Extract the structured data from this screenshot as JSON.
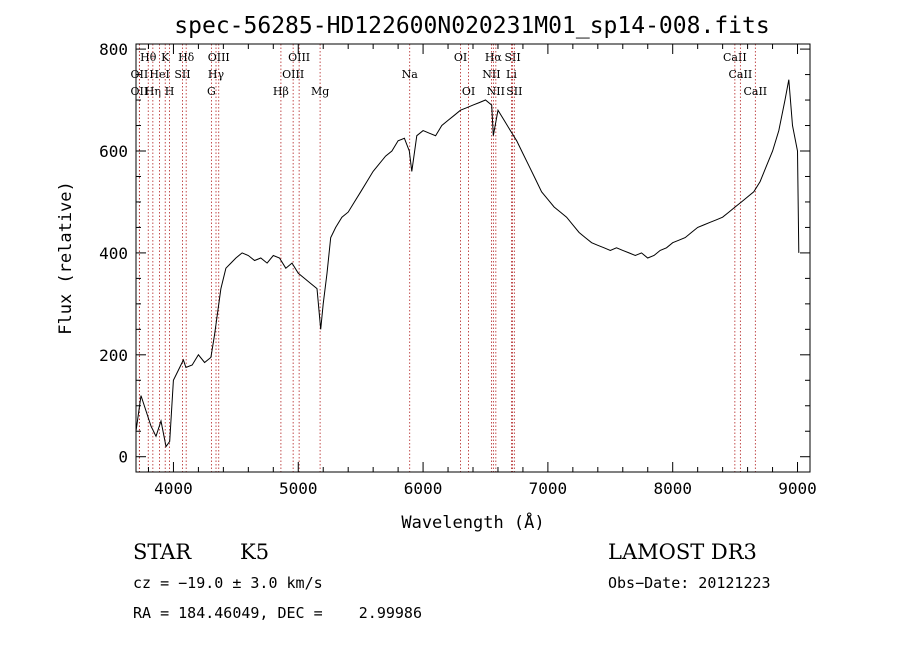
{
  "chart_data": {
    "type": "line",
    "title": "spec-56285-HD122600N020231M01_sp14-008.fits",
    "xlabel": "Wavelength (Å)",
    "ylabel": "Flux (relative)",
    "xlim": [
      3700,
      9100
    ],
    "ylim": [
      -30,
      810
    ],
    "x_ticks": [
      4000,
      5000,
      6000,
      7000,
      8000,
      9000
    ],
    "y_ticks": [
      0,
      200,
      400,
      600,
      800
    ],
    "grid": false,
    "legend": "none",
    "line_color": "#000000",
    "marker_color": "#b22222",
    "series": [
      {
        "x": [
          3700,
          3740,
          3780,
          3820,
          3860,
          3900,
          3940,
          3970,
          4000,
          4040,
          4080,
          4100,
          4150,
          4200,
          4250,
          4300,
          4330,
          4380,
          4420,
          4460,
          4500,
          4550,
          4600,
          4650,
          4700,
          4750,
          4800,
          4850,
          4900,
          4950,
          5000,
          5050,
          5100,
          5150,
          5180,
          5200,
          5230,
          5260,
          5300,
          5350,
          5400,
          5450,
          5500,
          5550,
          5600,
          5650,
          5700,
          5750,
          5800,
          5850,
          5890,
          5910,
          5950,
          6000,
          6050,
          6100,
          6150,
          6200,
          6250,
          6300,
          6350,
          6400,
          6450,
          6500,
          6550,
          6563,
          6600,
          6650,
          6700,
          6750,
          6800,
          6850,
          6900,
          6950,
          7000,
          7050,
          7100,
          7150,
          7200,
          7250,
          7300,
          7350,
          7400,
          7450,
          7500,
          7550,
          7600,
          7650,
          7700,
          7750,
          7800,
          7850,
          7900,
          7950,
          8000,
          8050,
          8100,
          8150,
          8200,
          8250,
          8300,
          8350,
          8400,
          8450,
          8500,
          8550,
          8600,
          8650,
          8700,
          8750,
          8800,
          8850,
          8900,
          8930,
          8960,
          9000,
          9010
        ],
        "y": [
          50,
          120,
          90,
          60,
          40,
          70,
          20,
          30,
          150,
          170,
          190,
          175,
          180,
          200,
          185,
          195,
          240,
          330,
          370,
          380,
          390,
          400,
          395,
          385,
          390,
          380,
          395,
          390,
          370,
          380,
          360,
          350,
          340,
          330,
          250,
          300,
          360,
          430,
          450,
          470,
          480,
          500,
          520,
          540,
          560,
          575,
          590,
          600,
          620,
          625,
          600,
          560,
          630,
          640,
          635,
          630,
          650,
          660,
          670,
          680,
          685,
          690,
          695,
          700,
          690,
          630,
          680,
          660,
          640,
          620,
          595,
          570,
          545,
          520,
          505,
          490,
          480,
          470,
          455,
          440,
          430,
          420,
          415,
          410,
          405,
          410,
          405,
          400,
          395,
          400,
          390,
          395,
          405,
          410,
          420,
          425,
          430,
          440,
          450,
          455,
          460,
          465,
          470,
          480,
          490,
          500,
          510,
          520,
          540,
          570,
          600,
          640,
          700,
          740,
          650,
          600,
          400
        ]
      }
    ],
    "line_markers": [
      {
        "label": "Hθ",
        "x": 3798,
        "row": 1
      },
      {
        "label": "OII",
        "x": 3727,
        "row": 2
      },
      {
        "label": "OII",
        "x": 3727,
        "row": 3
      },
      {
        "label": "Hη",
        "x": 3835,
        "row": 3
      },
      {
        "label": "HeI",
        "x": 3889,
        "row": 2
      },
      {
        "label": "K",
        "x": 3934,
        "row": 1
      },
      {
        "label": "H",
        "x": 3969,
        "row": 3
      },
      {
        "label": "SII",
        "x": 4072,
        "row": 2
      },
      {
        "label": "Hδ",
        "x": 4102,
        "row": 1
      },
      {
        "label": "G",
        "x": 4304,
        "row": 3
      },
      {
        "label": "Hγ",
        "x": 4341,
        "row": 2
      },
      {
        "label": "OIII",
        "x": 4363,
        "row": 1
      },
      {
        "label": "Hβ",
        "x": 4861,
        "row": 3
      },
      {
        "label": "OIII",
        "x": 4959,
        "row": 2
      },
      {
        "label": "OIII",
        "x": 5007,
        "row": 1
      },
      {
        "label": "Mg",
        "x": 5175,
        "row": 3
      },
      {
        "label": "Na",
        "x": 5893,
        "row": 2
      },
      {
        "label": "OI",
        "x": 6300,
        "row": 1
      },
      {
        "label": "OI",
        "x": 6364,
        "row": 3
      },
      {
        "label": "NII",
        "x": 6548,
        "row": 2
      },
      {
        "label": "Hα",
        "x": 6563,
        "row": 1
      },
      {
        "label": "NII",
        "x": 6583,
        "row": 3
      },
      {
        "label": "Li",
        "x": 6708,
        "row": 2
      },
      {
        "label": "SII",
        "x": 6717,
        "row": 1
      },
      {
        "label": "SII",
        "x": 6731,
        "row": 3
      },
      {
        "label": "CaII",
        "x": 8498,
        "row": 1
      },
      {
        "label": "CaII",
        "x": 8542,
        "row": 2
      },
      {
        "label": "CaII",
        "x": 8662,
        "row": 3
      }
    ]
  },
  "info": {
    "object_class": "STAR",
    "subclass": "K5",
    "survey": "LAMOST DR3",
    "redshift_line": "cz = −19.0 ± 3.0 km/s",
    "obs_date_line": "Obs−Date: 20121223",
    "coords_line": "RA = 184.46049, DEC =    2.99986"
  }
}
